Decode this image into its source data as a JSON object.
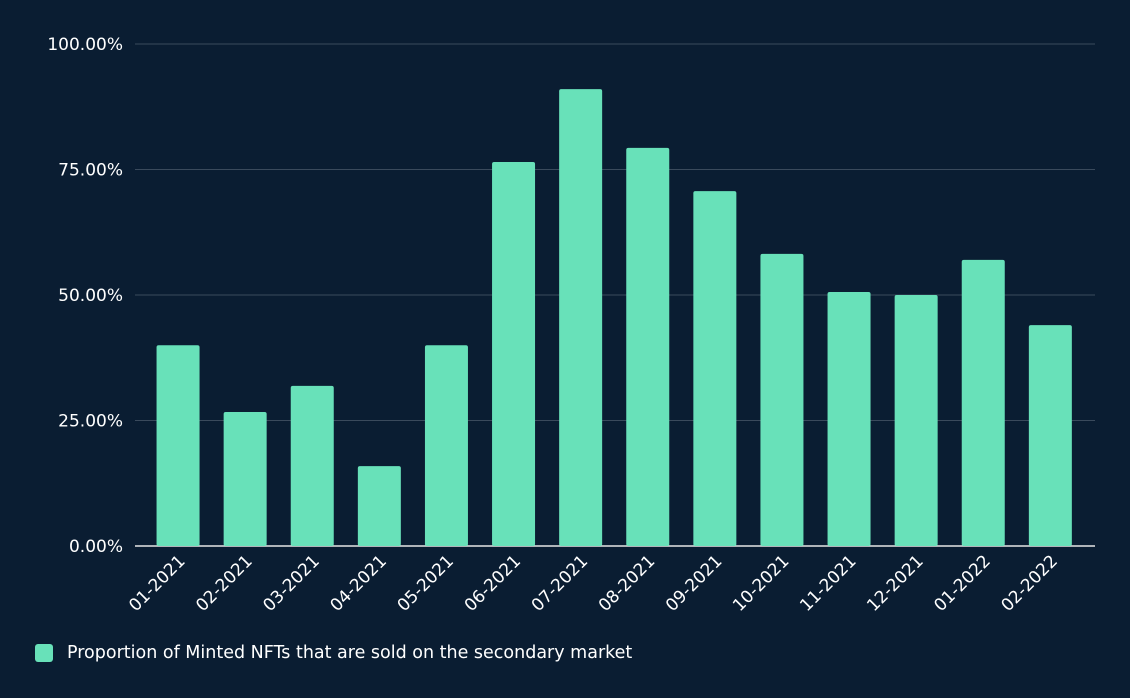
{
  "chart_data": {
    "type": "bar",
    "title": "",
    "xlabel": "",
    "ylabel": "",
    "categories": [
      "01-2021",
      "02-2021",
      "03-2021",
      "04-2021",
      "05-2021",
      "06-2021",
      "07-2021",
      "08-2021",
      "09-2021",
      "10-2021",
      "11-2021",
      "12-2021",
      "01-2022",
      "02-2022"
    ],
    "series": [
      {
        "name": "Proportion of Minted NFTs that are sold on the secondary market",
        "values": [
          40.0,
          26.7,
          31.9,
          15.9,
          40.0,
          76.5,
          91.0,
          79.3,
          70.7,
          58.2,
          50.6,
          50.0,
          57.0,
          44.0
        ]
      }
    ],
    "ylim": [
      0,
      100
    ],
    "yticks": [
      0,
      25,
      50,
      75,
      100
    ],
    "ytick_labels": [
      "0.00%",
      "25.00%",
      "50.00%",
      "75.00%",
      "100.00%"
    ],
    "grid": true,
    "legend_position": "bottom-left",
    "colors": {
      "bar": "#68e1b9",
      "background": "#0a1d32",
      "grid": "#3a4a5c",
      "text": "#ffffff"
    }
  }
}
